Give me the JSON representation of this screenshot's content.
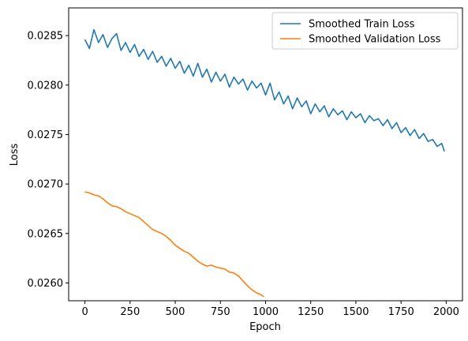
{
  "chart_data": {
    "type": "line",
    "title": "",
    "xlabel": "Epoch",
    "ylabel": "Loss",
    "xlim": [
      -90,
      2090
    ],
    "ylim": [
      0.02582,
      0.02878
    ],
    "xticks": [
      0,
      250,
      500,
      750,
      1000,
      1250,
      1500,
      1750,
      2000
    ],
    "xtick_labels": [
      "0",
      "250",
      "500",
      "750",
      "1000",
      "1250",
      "1500",
      "1750",
      "2000"
    ],
    "yticks": [
      0.026,
      0.0265,
      0.027,
      0.0275,
      0.028,
      0.0285
    ],
    "ytick_labels": [
      "0.0260",
      "0.0265",
      "0.0270",
      "0.0275",
      "0.0280",
      "0.0285"
    ],
    "grid": false,
    "legend_position": "top-right",
    "series": [
      {
        "name": "Smoothed Train Loss",
        "color": "#1f77b4",
        "x": [
          0,
          25,
          50,
          75,
          100,
          125,
          150,
          175,
          200,
          225,
          250,
          275,
          300,
          325,
          350,
          375,
          400,
          425,
          450,
          475,
          500,
          525,
          550,
          575,
          600,
          625,
          650,
          675,
          700,
          725,
          750,
          775,
          800,
          825,
          850,
          875,
          900,
          925,
          950,
          975,
          1000,
          1025,
          1050,
          1075,
          1100,
          1125,
          1150,
          1175,
          1200,
          1225,
          1250,
          1275,
          1300,
          1325,
          1350,
          1375,
          1400,
          1425,
          1450,
          1475,
          1500,
          1525,
          1550,
          1575,
          1600,
          1625,
          1650,
          1675,
          1700,
          1725,
          1750,
          1775,
          1800,
          1825,
          1850,
          1875,
          1900,
          1925,
          1950,
          1975,
          1990
        ],
        "y": [
          0.02846,
          0.02837,
          0.02856,
          0.02843,
          0.02851,
          0.02838,
          0.02847,
          0.02852,
          0.02835,
          0.02843,
          0.02833,
          0.02841,
          0.02829,
          0.02836,
          0.02826,
          0.02834,
          0.02823,
          0.02829,
          0.02819,
          0.02827,
          0.02817,
          0.02824,
          0.02812,
          0.0282,
          0.02809,
          0.02822,
          0.02808,
          0.02816,
          0.02803,
          0.02813,
          0.02804,
          0.02811,
          0.02798,
          0.02808,
          0.02801,
          0.02806,
          0.02795,
          0.02804,
          0.02797,
          0.02802,
          0.0279,
          0.02802,
          0.02785,
          0.02793,
          0.02781,
          0.02789,
          0.02776,
          0.02787,
          0.02778,
          0.02784,
          0.02771,
          0.02781,
          0.02773,
          0.02779,
          0.02768,
          0.02776,
          0.0277,
          0.02774,
          0.02765,
          0.02773,
          0.02767,
          0.02771,
          0.02762,
          0.02769,
          0.02764,
          0.02766,
          0.02759,
          0.02765,
          0.02756,
          0.02762,
          0.02752,
          0.02757,
          0.02749,
          0.02755,
          0.02746,
          0.02751,
          0.02743,
          0.02745,
          0.02738,
          0.02741,
          0.02733
        ]
      },
      {
        "name": "Smoothed Validation Loss",
        "color": "#ff7f0e",
        "x": [
          0,
          25,
          50,
          75,
          100,
          125,
          150,
          175,
          200,
          225,
          250,
          275,
          300,
          325,
          350,
          375,
          400,
          425,
          450,
          475,
          500,
          525,
          550,
          575,
          600,
          625,
          650,
          675,
          700,
          725,
          750,
          775,
          800,
          825,
          850,
          875,
          900,
          925,
          950,
          975,
          990
        ],
        "y": [
          0.02692,
          0.02691,
          0.02689,
          0.02688,
          0.02685,
          0.02681,
          0.02678,
          0.02677,
          0.02675,
          0.02672,
          0.0267,
          0.02668,
          0.02666,
          0.02662,
          0.02658,
          0.02654,
          0.02652,
          0.0265,
          0.02647,
          0.02643,
          0.02638,
          0.02635,
          0.02632,
          0.0263,
          0.02626,
          0.02622,
          0.02619,
          0.02617,
          0.02618,
          0.02616,
          0.02615,
          0.02614,
          0.02611,
          0.0261,
          0.02607,
          0.02602,
          0.02597,
          0.02593,
          0.0259,
          0.02588,
          0.02586
        ]
      }
    ]
  }
}
